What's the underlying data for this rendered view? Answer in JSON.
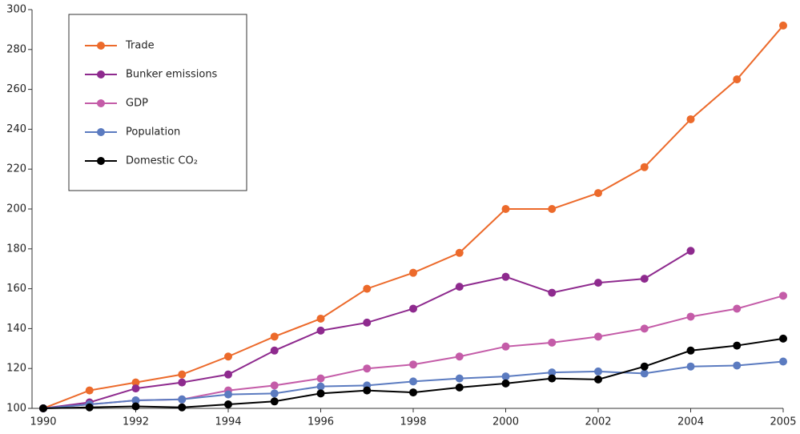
{
  "chart_data": {
    "type": "line",
    "categories": [
      "1990",
      null,
      "1992",
      null,
      "1994",
      null,
      "1996",
      null,
      "1998",
      null,
      "2000",
      null,
      "2002",
      null,
      "2004",
      null,
      "2005"
    ],
    "ylim": [
      100,
      300
    ],
    "yticks": [
      100,
      120,
      140,
      160,
      180,
      200,
      220,
      240,
      260,
      280,
      300
    ],
    "legend": "upper left",
    "series": [
      {
        "name": "Trade",
        "color": "#ec6a2b",
        "values": [
          100,
          109,
          113,
          117,
          126,
          136,
          145,
          160,
          168,
          178,
          200,
          200,
          208,
          221,
          245,
          265,
          292
        ]
      },
      {
        "name": "Bunker emissions",
        "color": "#8e2a8e",
        "values": [
          100,
          103,
          110,
          113,
          117,
          129,
          139,
          143,
          150,
          161,
          166,
          158,
          163,
          165,
          179,
          null,
          null
        ]
      },
      {
        "name": "GDP",
        "color": "#c45ca8",
        "values": [
          100,
          102,
          104,
          104.5,
          109,
          111.5,
          115,
          120,
          122,
          126,
          131,
          133,
          136,
          140,
          146,
          150,
          156.5
        ]
      },
      {
        "name": "Population",
        "color": "#5b7bc0",
        "values": [
          100,
          102,
          104,
          104.5,
          107,
          107.5,
          111,
          111.5,
          113.5,
          115,
          116,
          118,
          118.5,
          117.5,
          121,
          121.5,
          123.5
        ]
      },
      {
        "name": "Domestic CO₂",
        "color": "#000000",
        "values": [
          100,
          100.5,
          101,
          100.5,
          102,
          103.5,
          107.5,
          109,
          108,
          110.5,
          112.5,
          115,
          114.5,
          121,
          129,
          131.5,
          135
        ]
      }
    ]
  }
}
